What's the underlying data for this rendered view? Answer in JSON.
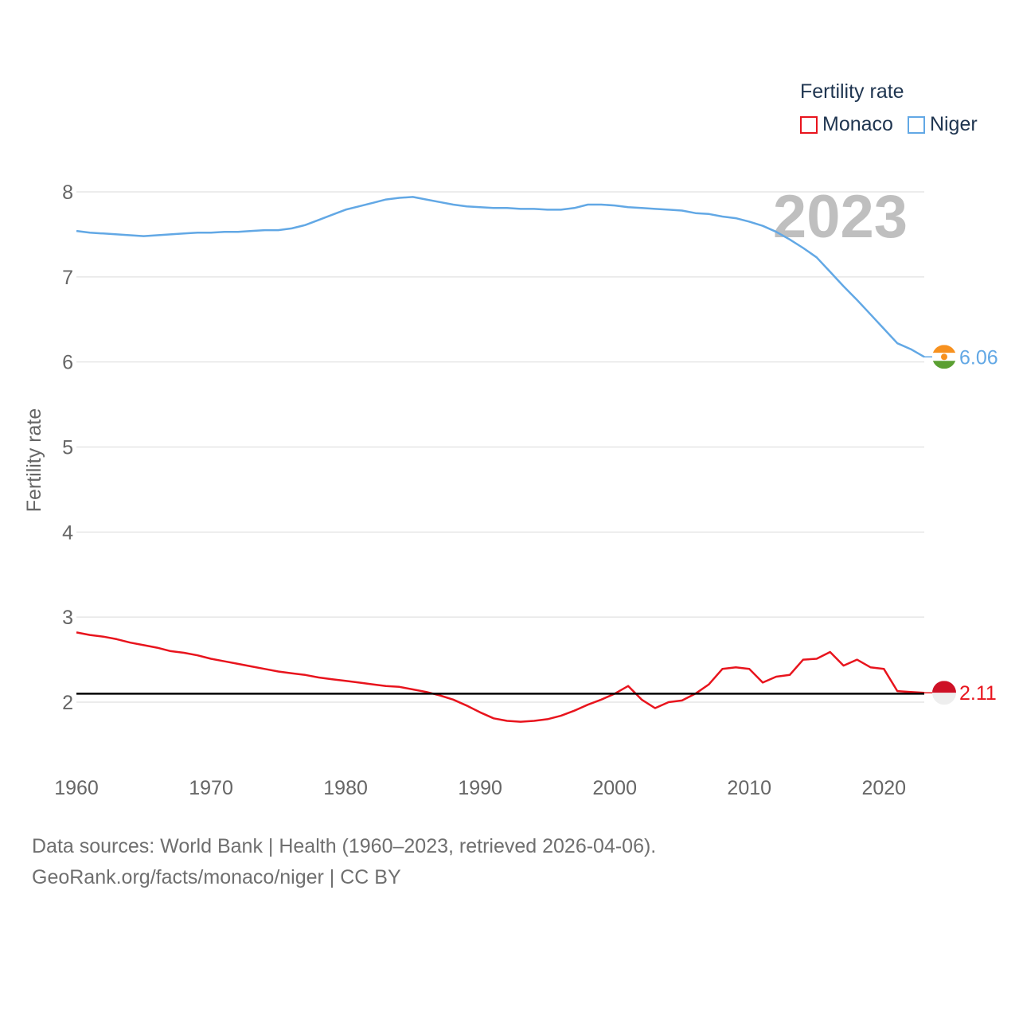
{
  "legend": {
    "title": "Fertility rate",
    "items": [
      {
        "label": "Monaco",
        "color": "#e8141d"
      },
      {
        "label": "Niger",
        "color": "#62a8e5"
      }
    ]
  },
  "footer": {
    "line1": "Data sources: World Bank | Health (1960–2023, retrieved 2026-04-06).",
    "line2": "GeoRank.org/facts/monaco/niger | CC BY"
  },
  "colors": {
    "monaco": "#e8141d",
    "niger": "#62a8e5",
    "reference_line": "#000000",
    "grid": "#e6e6e6",
    "year_watermark": "#bfbfbf",
    "tick_text": "#666666"
  },
  "chart_data": {
    "type": "line",
    "title": "",
    "xlabel": "",
    "ylabel": "Fertility rate",
    "year_label": "2023",
    "xlim": [
      1960,
      2023
    ],
    "ylim": [
      1.3,
      8.3
    ],
    "x_ticks": [
      1960,
      1970,
      1980,
      1990,
      2000,
      2010,
      2020
    ],
    "y_ticks": [
      2,
      3,
      4,
      5,
      6,
      7,
      8
    ],
    "reference_value": 2.1,
    "x": [
      1960,
      1961,
      1962,
      1963,
      1964,
      1965,
      1966,
      1967,
      1968,
      1969,
      1970,
      1971,
      1972,
      1973,
      1974,
      1975,
      1976,
      1977,
      1978,
      1979,
      1980,
      1981,
      1982,
      1983,
      1984,
      1985,
      1986,
      1987,
      1988,
      1989,
      1990,
      1991,
      1992,
      1993,
      1994,
      1995,
      1996,
      1997,
      1998,
      1999,
      2000,
      2001,
      2002,
      2003,
      2004,
      2005,
      2006,
      2007,
      2008,
      2009,
      2010,
      2011,
      2012,
      2013,
      2014,
      2015,
      2016,
      2017,
      2018,
      2019,
      2020,
      2021,
      2022,
      2023
    ],
    "series": [
      {
        "name": "Monaco",
        "end_label": "2.11",
        "values": [
          2.82,
          2.79,
          2.77,
          2.74,
          2.7,
          2.67,
          2.64,
          2.6,
          2.58,
          2.55,
          2.51,
          2.48,
          2.45,
          2.42,
          2.39,
          2.36,
          2.34,
          2.32,
          2.29,
          2.27,
          2.25,
          2.23,
          2.21,
          2.19,
          2.18,
          2.15,
          2.12,
          2.08,
          2.03,
          1.96,
          1.88,
          1.81,
          1.78,
          1.77,
          1.78,
          1.8,
          1.84,
          1.9,
          1.97,
          2.03,
          2.1,
          2.19,
          2.03,
          1.93,
          2.0,
          2.02,
          2.1,
          2.21,
          2.39,
          2.41,
          2.39,
          2.23,
          2.3,
          2.32,
          2.5,
          2.51,
          2.59,
          2.43,
          2.5,
          2.41,
          2.39,
          2.13,
          2.12,
          2.11
        ]
      },
      {
        "name": "Niger",
        "end_label": "6.06",
        "values": [
          7.54,
          7.52,
          7.51,
          7.5,
          7.49,
          7.48,
          7.49,
          7.5,
          7.51,
          7.52,
          7.52,
          7.53,
          7.53,
          7.54,
          7.55,
          7.55,
          7.57,
          7.61,
          7.67,
          7.73,
          7.79,
          7.83,
          7.87,
          7.91,
          7.93,
          7.94,
          7.91,
          7.88,
          7.85,
          7.83,
          7.82,
          7.81,
          7.81,
          7.8,
          7.8,
          7.79,
          7.79,
          7.81,
          7.85,
          7.85,
          7.84,
          7.82,
          7.81,
          7.8,
          7.79,
          7.78,
          7.75,
          7.74,
          7.71,
          7.69,
          7.65,
          7.6,
          7.53,
          7.44,
          7.34,
          7.23,
          7.06,
          6.89,
          6.73,
          6.56,
          6.39,
          6.22,
          6.15,
          6.06
        ]
      }
    ]
  }
}
